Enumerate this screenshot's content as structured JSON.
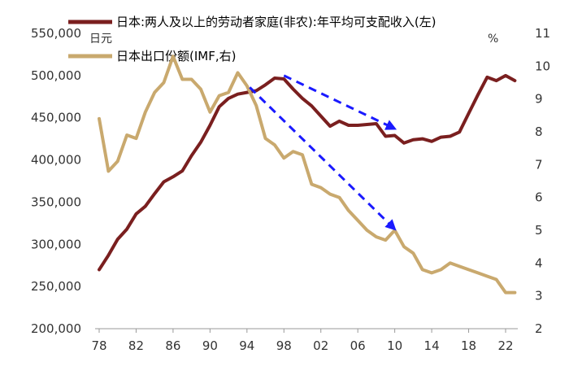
{
  "chart_data": {
    "type": "line",
    "title": "",
    "legend_placement": "top",
    "left_axis_unit": "日元",
    "right_axis_unit": "%",
    "ylim_left": [
      200000,
      550000
    ],
    "ylim_right": [
      2,
      11
    ],
    "xlim": [
      1978,
      2023.5
    ],
    "left_ticks": [
      "200,000",
      "250,000",
      "300,000",
      "350,000",
      "400,000",
      "450,000",
      "500,000",
      "550,000"
    ],
    "right_ticks": [
      "2",
      "3",
      "4",
      "5",
      "6",
      "7",
      "8",
      "9",
      "10",
      "11"
    ],
    "x_ticks": [
      {
        "year": 1978,
        "label": "78"
      },
      {
        "year": 1982,
        "label": "82"
      },
      {
        "year": 1986,
        "label": "86"
      },
      {
        "year": 1990,
        "label": "90"
      },
      {
        "year": 1994,
        "label": "94"
      },
      {
        "year": 1998,
        "label": "98"
      },
      {
        "year": 2002,
        "label": "02"
      },
      {
        "year": 2006,
        "label": "06"
      },
      {
        "year": 2010,
        "label": "10"
      },
      {
        "year": 2014,
        "label": "14"
      },
      {
        "year": 2018,
        "label": "18"
      },
      {
        "year": 2022,
        "label": "22"
      }
    ],
    "series": [
      {
        "name": "日本:两人及以上的劳动者家庭(非农):年平均可支配收入(左)",
        "axis": "left",
        "color": "#7a1f1f",
        "x": [
          1978,
          1979,
          1980,
          1981,
          1982,
          1983,
          1984,
          1985,
          1986,
          1987,
          1988,
          1989,
          1990,
          1991,
          1992,
          1993,
          1994,
          1995,
          1996,
          1997,
          1998,
          1999,
          2000,
          2001,
          2002,
          2003,
          2004,
          2005,
          2006,
          2007,
          2008,
          2009,
          2010,
          2011,
          2012,
          2013,
          2014,
          2015,
          2016,
          2017,
          2018,
          2019,
          2020,
          2021,
          2022,
          2023
        ],
        "values": [
          270000,
          287000,
          306000,
          318000,
          336000,
          345000,
          360000,
          374000,
          380000,
          387000,
          405000,
          421000,
          441000,
          463000,
          473000,
          478000,
          480000,
          482000,
          489000,
          497000,
          496000,
          484000,
          473000,
          464000,
          452000,
          440000,
          446000,
          441000,
          441000,
          442000,
          443000,
          428000,
          429000,
          420000,
          424000,
          425000,
          422000,
          427000,
          428000,
          433000,
          455000,
          477000,
          498000,
          494000,
          500000,
          494000
        ]
      },
      {
        "name": "日本出口份额(IMF,右)",
        "axis": "right",
        "color": "#c9a96e",
        "x": [
          1978,
          1979,
          1980,
          1981,
          1982,
          1983,
          1984,
          1985,
          1986,
          1987,
          1988,
          1989,
          1990,
          1991,
          1992,
          1993,
          1994,
          1995,
          1996,
          1997,
          1998,
          1999,
          2000,
          2001,
          2002,
          2003,
          2004,
          2005,
          2006,
          2007,
          2008,
          2009,
          2010,
          2011,
          2012,
          2013,
          2014,
          2015,
          2016,
          2017,
          2018,
          2019,
          2020,
          2021,
          2022,
          2023
        ],
        "values": [
          8.4,
          6.8,
          7.1,
          7.9,
          7.8,
          8.6,
          9.2,
          9.5,
          10.3,
          9.6,
          9.6,
          9.3,
          8.6,
          9.1,
          9.2,
          9.8,
          9.4,
          8.8,
          7.8,
          7.6,
          7.2,
          7.4,
          7.3,
          6.4,
          6.3,
          6.1,
          6.0,
          5.6,
          5.3,
          5.0,
          4.8,
          4.7,
          5.0,
          4.5,
          4.3,
          3.8,
          3.7,
          3.8,
          4.0,
          3.9,
          3.8,
          3.7,
          3.6,
          3.5,
          3.1,
          3.1
        ]
      }
    ],
    "annotations": [
      {
        "type": "dashed-arrow",
        "color": "#1a1aff",
        "axis": "left",
        "from": [
          1998,
          500000
        ],
        "to": [
          2010,
          437000
        ]
      },
      {
        "type": "dashed-arrow",
        "color": "#1a1aff",
        "axis": "left",
        "from": [
          1994.3,
          486000
        ],
        "to": [
          2010,
          318000
        ]
      }
    ]
  }
}
